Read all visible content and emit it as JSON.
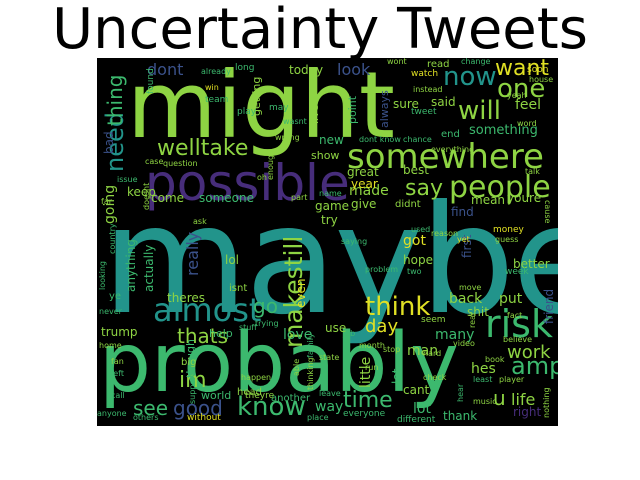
{
  "title": "Uncertainty Tweets",
  "palette": {
    "yellow": "#e0e024",
    "lime": "#8ed443",
    "green": "#3cb96e",
    "teal": "#22948b",
    "blue": "#2d708e",
    "indigo": "#3b528b",
    "purple": "#472d7b",
    "dark": "#440154"
  },
  "words": {
    "maybe": "maybe",
    "might": "might",
    "probably": "probably",
    "possible": "possible",
    "somewhere": "somewhere",
    "almost": "almost",
    "risk": "risk",
    "people": "people",
    "think": "think",
    "welltake": "welltake",
    "makestill": "makestill",
    "know": "know",
    "one": "one",
    "will": "will",
    "now": "now",
    "want": "want",
    "need": "need",
    "thing": "thing",
    "amp": "amp",
    "time": "time",
    "good": "good",
    "say": "say",
    "im": "im",
    "see": "see",
    "go": "go",
    "thats": "thats",
    "work": "work",
    "day": "day",
    "life": "life",
    "u": "u",
    "really": "really",
    "dont": "dont",
    "look": "look",
    "today": "today",
    "feel": "feel",
    "said": "said",
    "something": "something",
    "end": "end",
    "new": "new",
    "show": "show",
    "made": "made",
    "year": "year",
    "great": "great",
    "best": "best",
    "mean": "mean",
    "youre": "youre",
    "find": "find",
    "first": "first",
    "got": "got",
    "hope": "hope",
    "better": "better",
    "back": "back",
    "put": "put",
    "many": "many",
    "shit": "shit",
    "hes": "hes",
    "friend": "friend",
    "man": "man",
    "lot": "lot",
    "cant": "cant",
    "thank": "thank",
    "right": "right",
    "way": "way",
    "even": "even",
    "love": "love",
    "use": "use",
    "little": "little",
    "let": "let",
    "trump": "trump",
    "theres": "theres",
    "anything": "anything",
    "actually": "actually",
    "lol": "lol",
    "someone": "someone",
    "come": "come",
    "keep": "keep",
    "going": "going",
    "bad": "bad",
    "give": "give",
    "game": "game",
    "try": "try",
    "didnt": "didnt",
    "isnt": "isnt",
    "help": "help",
    "world": "world",
    "though": "though",
    "head": "head",
    "without": "without",
    "another": "another",
    "theyre": "theyre",
    "everyone": "everyone",
    "different": "different",
    "place": "place",
    "point": "point",
    "live": "live",
    "getting": "getting",
    "always": "always",
    "sure": "sure",
    "tweet": "tweet",
    "read": "read",
    "watch": "watch",
    "instead": "instead",
    "soon": "soon",
    "long": "long",
    "already": "already",
    "win": "win",
    "team": "team",
    "play": "play",
    "may": "may",
    "start": "start",
    "question": "question",
    "case": "case",
    "oh": "oh",
    "dont_know": "dont know",
    "chance": "chance",
    "wont": "wont",
    "change": "change",
    "house": "house",
    "yeah": "yeah",
    "word": "word",
    "talk": "talk",
    "cause": "cause",
    "reason": "reason",
    "yet": "yet",
    "money": "money",
    "guess": "guess",
    "week": "week",
    "move": "move",
    "fact": "fact",
    "believe": "believe",
    "video": "video",
    "book": "book",
    "least": "least",
    "player": "player",
    "nothing": "nothing",
    "music": "music",
    "hard": "hard",
    "check": "check",
    "stop": "stop",
    "month": "month",
    "run": "run",
    "job": "job",
    "problem": "problem",
    "used": "used",
    "two": "two",
    "saying": "saying",
    "state": "state",
    "happen": "happen",
    "leave": "leave",
    "big": "big",
    "fan": "fan",
    "left": "left",
    "call": "call",
    "anyone": "anyone",
    "others": "others",
    "home": "home",
    "never": "never",
    "ye": "ye",
    "far": "far",
    "issue": "issue",
    "ask": "ask",
    "looking": "looking",
    "country": "country",
    "everything": "everything",
    "trying": "trying",
    "able": "able",
    "thinking": "thinking",
    "wrong": "wrong",
    "enough": "enough",
    "part": "part",
    "name": "name",
    "seem": "seem",
    "real": "real",
    "support": "support",
    "family": "family",
    "found": "found",
    "doesnt": "doesnt",
    "stuff": "stuff",
    "wasnt": "wasnt",
    "hear": "hear"
  }
}
